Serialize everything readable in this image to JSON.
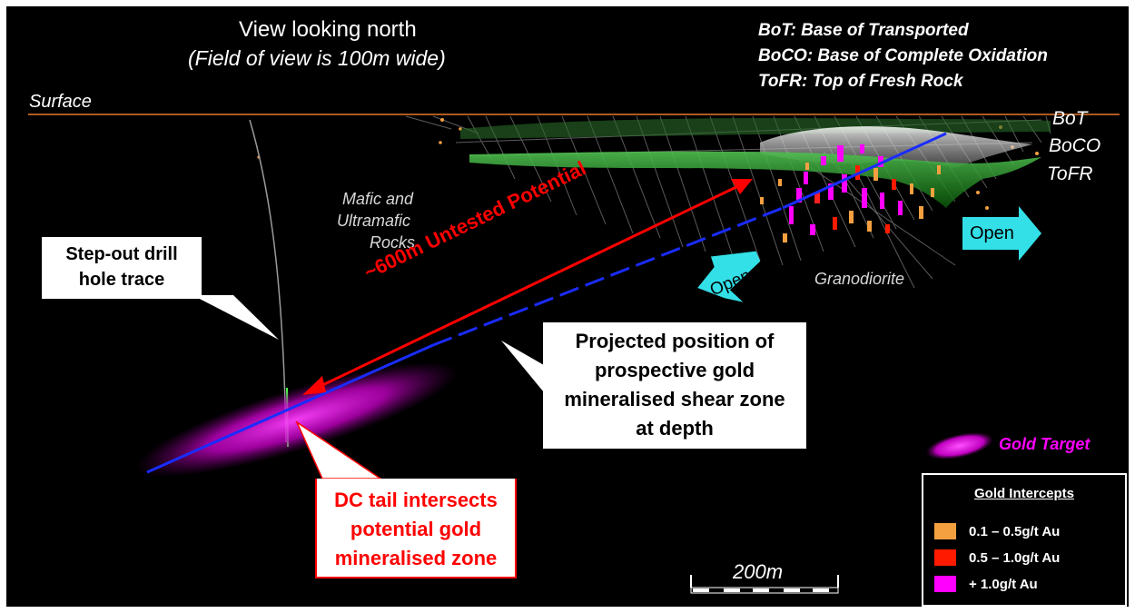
{
  "header": {
    "title": "View looking north",
    "subtitle": "(Field of view is 100m wide)"
  },
  "surface_label": "Surface",
  "definitions": [
    "BoT: Base of Transported",
    "BoCO: Base of Complete Oxidation",
    "ToFR: Top of Fresh Rock"
  ],
  "horizon_labels": {
    "bot": "BoT",
    "boco": "BoCO",
    "tofr": "ToFR"
  },
  "rock_labels": {
    "mafic": [
      "Mafic and",
      "Ultramafic",
      "Rocks"
    ],
    "granodiorite": "Granodiorite"
  },
  "callouts": {
    "step_out": [
      "Step-out drill",
      "hole trace"
    ],
    "projected": [
      "Projected position of",
      "prospective gold",
      "mineralised shear zone",
      "at depth"
    ],
    "dc_tail": [
      "DC tail intersects",
      "potential gold",
      "mineralised zone"
    ]
  },
  "untested_label": "~600m Untested Potential",
  "open_labels": {
    "left": "Open",
    "right": "Open"
  },
  "gold_target_label": "Gold Target",
  "scale_label": "200m",
  "legend": {
    "title": "Gold Intercepts",
    "items": [
      {
        "label": "0.1 – 0.5g/t Au",
        "color": "#f5a040"
      },
      {
        "label": "0.5 – 1.0g/t Au",
        "color": "#ff1a00"
      },
      {
        "label": "+ 1.0g/t Au",
        "color": "#ff00ff"
      }
    ]
  },
  "colors": {
    "background": "#000000",
    "surface_line": "#b05a20",
    "shear_zone": "#1a2cff",
    "untested_arrow": "#ff0000",
    "open_arrow": "#33e0e8",
    "gold_target": "#e000e0",
    "green_horizon": "#2e9e2e"
  }
}
